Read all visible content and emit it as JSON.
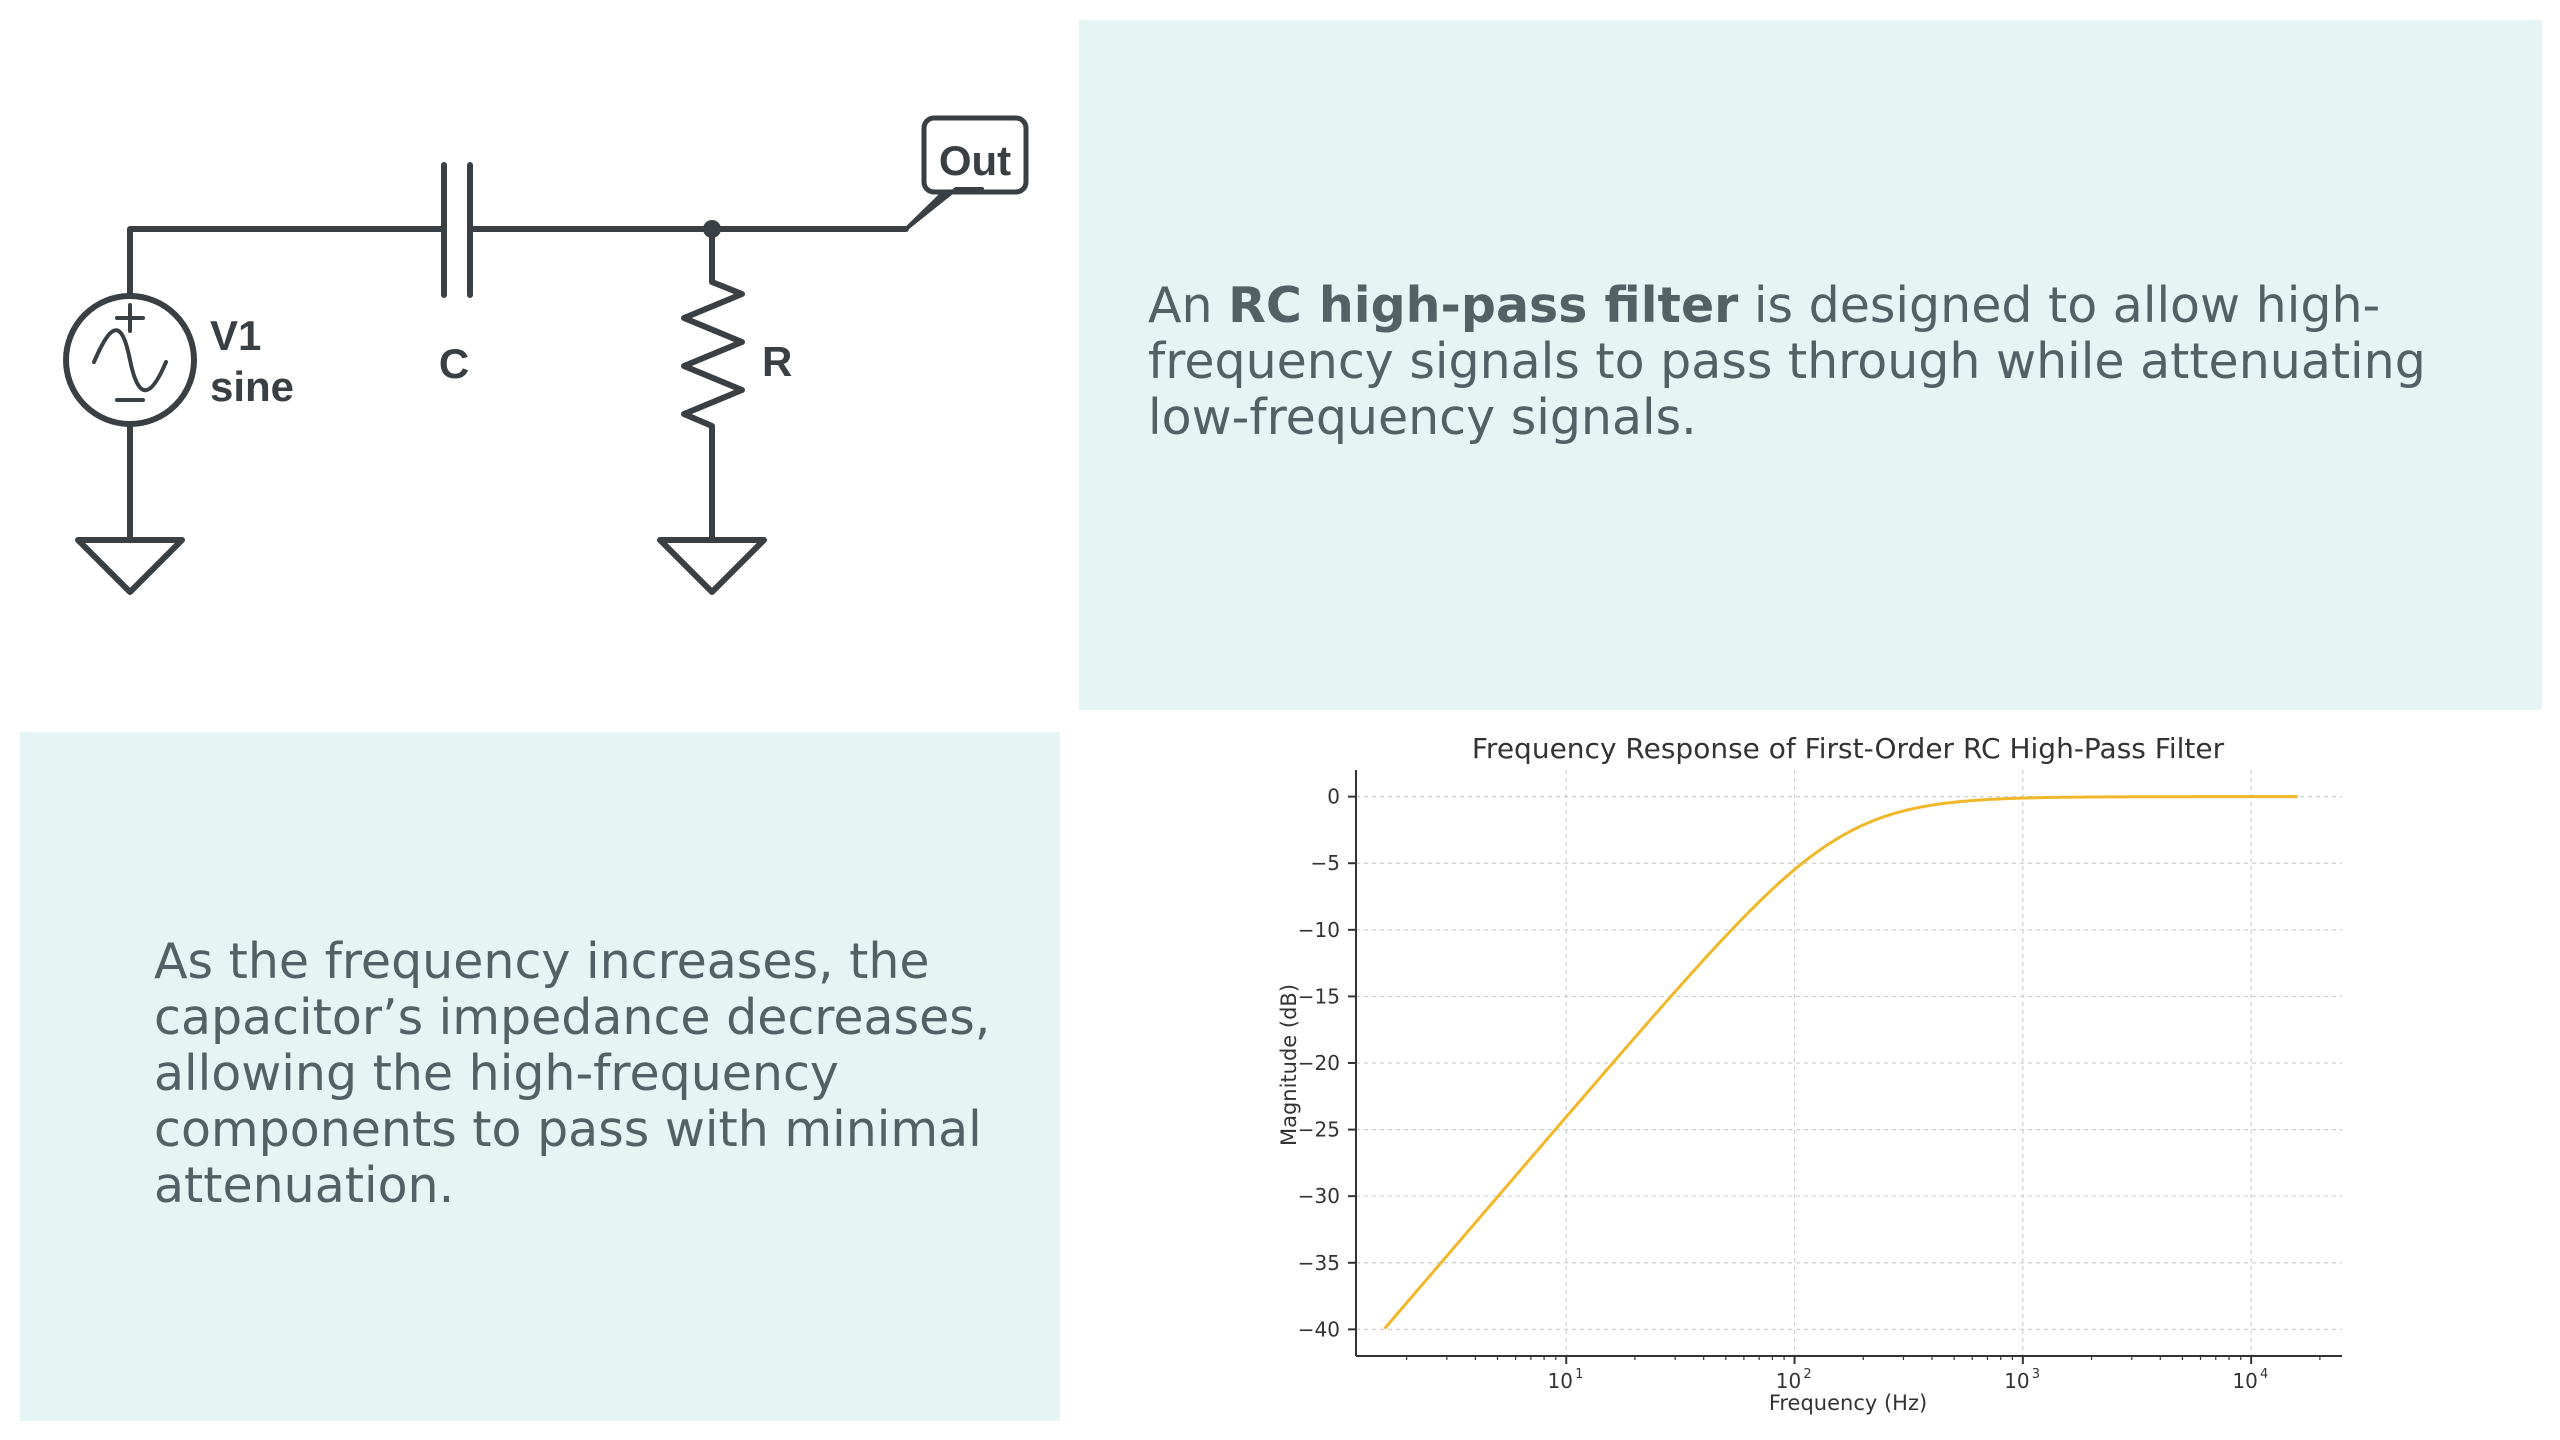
{
  "circuit": {
    "source_label": "V1",
    "source_type": "sine",
    "capacitor_label": "C",
    "resistor_label": "R",
    "output_label": "Out"
  },
  "description": {
    "intro_prefix": "An ",
    "intro_bold": "RC high-pass filter",
    "intro_suffix": " is designed to allow high-frequency signals to pass through while attenuating low-frequency signals.",
    "behavior": "As the frequency increases, the capacitor’s impedance decreases, allowing the high-frequency components to pass with minimal attenuation."
  },
  "chart_data": {
    "type": "line",
    "title": "Frequency Response of First-Order RC High-Pass Filter",
    "xlabel": "Frequency (Hz)",
    "ylabel": "Magnitude (dB)",
    "x_scale": "log",
    "xlim": [
      1.2,
      25000
    ],
    "ylim": [
      -42,
      2
    ],
    "x_ticks": [
      10,
      100,
      1000,
      10000
    ],
    "x_tick_labels": [
      "10",
      "10",
      "10",
      "10"
    ],
    "x_tick_exponents": [
      "1",
      "2",
      "3",
      "4"
    ],
    "y_ticks": [
      0,
      -5,
      -10,
      -15,
      -20,
      -25,
      -30,
      -35,
      -40
    ],
    "y_tick_labels": [
      "0",
      "−5",
      "−10",
      "−15",
      "−20",
      "−25",
      "−30",
      "−35",
      "−40"
    ],
    "grid": true,
    "line_color": "#f0b829",
    "series": [
      {
        "x_range": [
          1.6,
          16000
        ],
        "cutoff_hz": 159,
        "order": 1
      }
    ]
  }
}
